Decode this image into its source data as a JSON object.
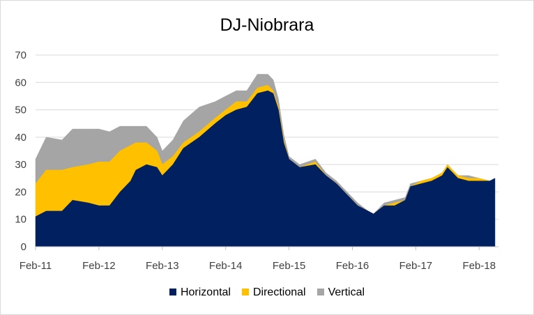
{
  "chart_data": {
    "type": "area",
    "stacked": true,
    "title": "DJ-Niobrara",
    "xlabel": "",
    "ylabel": "",
    "ylim": [
      0,
      70
    ],
    "yticks": [
      "0",
      "10",
      "20",
      "30",
      "40",
      "50",
      "60",
      "70"
    ],
    "xticks": [
      "Feb-11",
      "Feb-12",
      "Feb-13",
      "Feb-14",
      "Feb-15",
      "Feb-16",
      "Feb-17",
      "Feb-18"
    ],
    "grid": "horizontal",
    "legend_position": "bottom",
    "series": [
      {
        "name": "Horizontal",
        "color": "#002060",
        "points": [
          [
            "2011-02",
            11
          ],
          [
            "2011-04",
            13
          ],
          [
            "2011-07",
            13
          ],
          [
            "2011-09",
            17
          ],
          [
            "2011-12",
            16
          ],
          [
            "2012-02",
            15
          ],
          [
            "2012-04",
            15
          ],
          [
            "2012-06",
            20
          ],
          [
            "2012-08",
            24
          ],
          [
            "2012-09",
            28
          ],
          [
            "2012-11",
            30
          ],
          [
            "2013-01",
            29
          ],
          [
            "2013-02",
            26
          ],
          [
            "2013-04",
            30
          ],
          [
            "2013-06",
            36
          ],
          [
            "2013-09",
            40
          ],
          [
            "2013-12",
            45
          ],
          [
            "2014-02",
            48
          ],
          [
            "2014-04",
            50
          ],
          [
            "2014-06",
            51
          ],
          [
            "2014-08",
            56
          ],
          [
            "2014-10",
            57
          ],
          [
            "2014-11",
            56
          ],
          [
            "2014-12",
            50
          ],
          [
            "2015-01",
            38
          ],
          [
            "2015-02",
            32
          ],
          [
            "2015-04",
            29
          ],
          [
            "2015-07",
            30
          ],
          [
            "2015-09",
            26
          ],
          [
            "2015-11",
            23
          ],
          [
            "2016-01",
            19
          ],
          [
            "2016-03",
            15
          ],
          [
            "2016-05",
            13
          ],
          [
            "2016-06",
            12
          ],
          [
            "2016-08",
            15
          ],
          [
            "2016-10",
            15
          ],
          [
            "2016-12",
            17
          ],
          [
            "2017-01",
            22
          ],
          [
            "2017-03",
            23
          ],
          [
            "2017-05",
            24
          ],
          [
            "2017-07",
            26
          ],
          [
            "2017-08",
            29
          ],
          [
            "2017-10",
            25
          ],
          [
            "2017-12",
            24
          ],
          [
            "2018-02",
            24
          ],
          [
            "2018-04",
            24
          ],
          [
            "2018-05",
            25
          ]
        ]
      },
      {
        "name": "Directional",
        "color": "#ffc000",
        "points": [
          [
            "2011-02",
            12
          ],
          [
            "2011-04",
            15
          ],
          [
            "2011-07",
            15
          ],
          [
            "2011-09",
            12
          ],
          [
            "2011-12",
            14
          ],
          [
            "2012-02",
            16
          ],
          [
            "2012-04",
            16
          ],
          [
            "2012-06",
            15
          ],
          [
            "2012-08",
            13
          ],
          [
            "2012-09",
            10
          ],
          [
            "2012-11",
            8
          ],
          [
            "2013-01",
            6
          ],
          [
            "2013-02",
            4
          ],
          [
            "2013-04",
            3
          ],
          [
            "2013-06",
            2
          ],
          [
            "2013-09",
            2
          ],
          [
            "2013-12",
            2
          ],
          [
            "2014-02",
            2
          ],
          [
            "2014-04",
            3
          ],
          [
            "2014-06",
            2
          ],
          [
            "2014-08",
            2
          ],
          [
            "2014-10",
            2
          ],
          [
            "2014-11",
            1
          ],
          [
            "2014-12",
            1
          ],
          [
            "2015-01",
            1
          ],
          [
            "2015-02",
            0
          ],
          [
            "2015-04",
            0
          ],
          [
            "2015-07",
            1
          ],
          [
            "2015-09",
            0
          ],
          [
            "2015-11",
            0
          ],
          [
            "2016-01",
            0
          ],
          [
            "2016-03",
            0
          ],
          [
            "2016-05",
            0
          ],
          [
            "2016-06",
            0
          ],
          [
            "2016-08",
            0
          ],
          [
            "2016-10",
            1
          ],
          [
            "2016-12",
            0
          ],
          [
            "2017-01",
            0
          ],
          [
            "2017-03",
            1
          ],
          [
            "2017-05",
            1
          ],
          [
            "2017-07",
            1
          ],
          [
            "2017-08",
            1
          ],
          [
            "2017-10",
            1
          ],
          [
            "2017-12",
            1
          ],
          [
            "2018-02",
            1
          ],
          [
            "2018-04",
            0
          ],
          [
            "2018-05",
            0
          ]
        ]
      },
      {
        "name": "Vertical",
        "color": "#a5a5a5",
        "points": [
          [
            "2011-02",
            9
          ],
          [
            "2011-04",
            12
          ],
          [
            "2011-07",
            11
          ],
          [
            "2011-09",
            14
          ],
          [
            "2011-12",
            13
          ],
          [
            "2012-02",
            12
          ],
          [
            "2012-04",
            11
          ],
          [
            "2012-06",
            9
          ],
          [
            "2012-08",
            7
          ],
          [
            "2012-09",
            6
          ],
          [
            "2012-11",
            6
          ],
          [
            "2013-01",
            5
          ],
          [
            "2013-02",
            5
          ],
          [
            "2013-04",
            6
          ],
          [
            "2013-06",
            8
          ],
          [
            "2013-09",
            9
          ],
          [
            "2013-12",
            6
          ],
          [
            "2014-02",
            5
          ],
          [
            "2014-04",
            4
          ],
          [
            "2014-06",
            4
          ],
          [
            "2014-08",
            5
          ],
          [
            "2014-10",
            4
          ],
          [
            "2014-11",
            4
          ],
          [
            "2014-12",
            3
          ],
          [
            "2015-01",
            2
          ],
          [
            "2015-02",
            1
          ],
          [
            "2015-04",
            1
          ],
          [
            "2015-07",
            1
          ],
          [
            "2015-09",
            1
          ],
          [
            "2015-11",
            1
          ],
          [
            "2016-01",
            1
          ],
          [
            "2016-03",
            1
          ],
          [
            "2016-05",
            0
          ],
          [
            "2016-06",
            0
          ],
          [
            "2016-08",
            1
          ],
          [
            "2016-10",
            1
          ],
          [
            "2016-12",
            1
          ],
          [
            "2017-01",
            1
          ],
          [
            "2017-03",
            0
          ],
          [
            "2017-05",
            0
          ],
          [
            "2017-07",
            0
          ],
          [
            "2017-08",
            0
          ],
          [
            "2017-10",
            0
          ],
          [
            "2017-12",
            1
          ],
          [
            "2018-02",
            0
          ],
          [
            "2018-04",
            0
          ],
          [
            "2018-05",
            0
          ]
        ]
      }
    ]
  }
}
